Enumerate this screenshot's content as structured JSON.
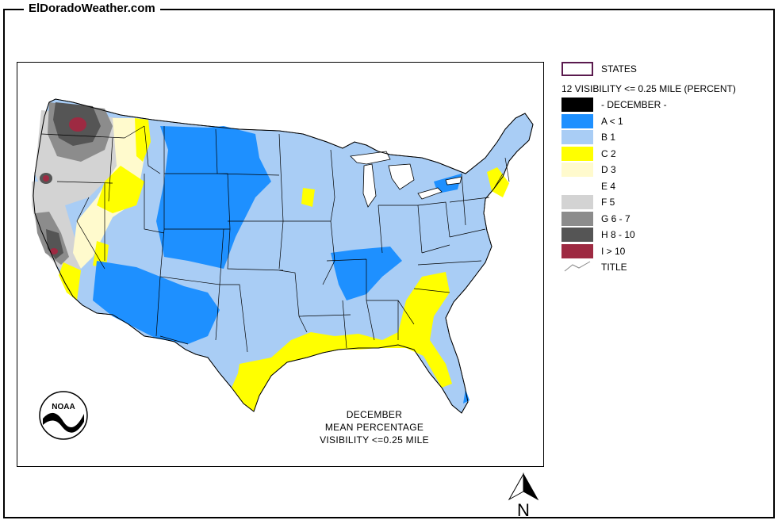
{
  "site": {
    "title": "ElDoradoWeather.com"
  },
  "map": {
    "caption": [
      "DECEMBER",
      "MEAN PERCENTAGE",
      "VISIBILITY <=0.25 MILE"
    ],
    "logo_text": "NOAA",
    "north_label": "N"
  },
  "legend": {
    "states_label": "STATES",
    "title": "12 VISIBILITY <= 0.25 MILE (PERCENT)",
    "items": [
      {
        "label": "- DECEMBER -",
        "color": "#000000"
      },
      {
        "label": "A < 1",
        "color": "#1e90ff"
      },
      {
        "label": "B 1",
        "color": "#a9cdf5"
      },
      {
        "label": "C 2",
        "color": "#ffff00"
      },
      {
        "label": "D 3",
        "color": "#fffacd"
      },
      {
        "label": "E 4",
        "color": "#ffffff"
      },
      {
        "label": "F 5",
        "color": "#d3d3d3"
      },
      {
        "label": "G 6 - 7",
        "color": "#8c8c8c"
      },
      {
        "label": "H 8 - 10",
        "color": "#555555"
      },
      {
        "label": "I > 10",
        "color": "#9e2a42"
      }
    ],
    "line_label": "TITLE"
  }
}
